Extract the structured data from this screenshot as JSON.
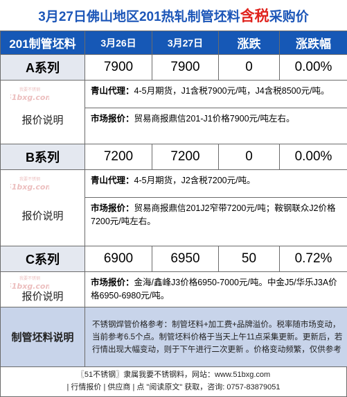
{
  "title": {
    "prefix": "3月27日佛山地区201热轧制管坯料",
    "highlight": "含税",
    "suffix": "采购价"
  },
  "header": {
    "col0": "201制管坯料",
    "col1": "3月26日",
    "col2": "3月27日",
    "col3": "涨跌",
    "col4": "涨跌幅"
  },
  "label_text": "报价说明",
  "watermark": {
    "top": "我要不锈钢",
    "main": "51bxg.com"
  },
  "rows": [
    {
      "name": "A系列",
      "d1": "7900",
      "d2": "7900",
      "chg": "0",
      "pct": "0.00%",
      "agent_label": "青山代理：",
      "agent_text": "4-5月期货，J1含税7900元/吨，J4含税8500元/吨。",
      "market_label": "市场报价：",
      "market_text": "贸易商报鼎信201-J1价格7900元/吨左右。"
    },
    {
      "name": "B系列",
      "d1": "7200",
      "d2": "7200",
      "chg": "0",
      "pct": "0.00%",
      "agent_label": "青山代理：",
      "agent_text": "4-5月期货，J2含税7200元/吨。",
      "market_label": "市场报价：",
      "market_text": "贸易商报鼎信201J2窄带7200元/吨；鞍钢联众J2价格7200元/吨左右。"
    },
    {
      "name": "C系列",
      "d1": "6900",
      "d2": "6950",
      "chg": "50",
      "pct": "0.72%",
      "market_label": "市场报价：",
      "market_text": "金海/鑫峰J3价格6950-7000元/吨。中金J5/华乐J3A价格6950-6980元/吨。"
    }
  ],
  "summary": {
    "label": "制管坯料说明",
    "text": "不锈钢焊管价格参考：制管坯料+加工费+品牌溢价。税率随市场变动，当前参考6.5个点。制管坯料价格于当天上午11点采集更新。更新后，若行情出现大幅变动，则于下午进行二次更新 。价格变动频繁，仅供参考"
  },
  "footer": {
    "line1": "〖51不锈钢〗隶属我要不锈钢料，网站：www.51bxg.com",
    "line2": "| 行情报价 | 供应商 | 点 \"阅读原文\" 获取，咨询: 0757-83879051"
  }
}
